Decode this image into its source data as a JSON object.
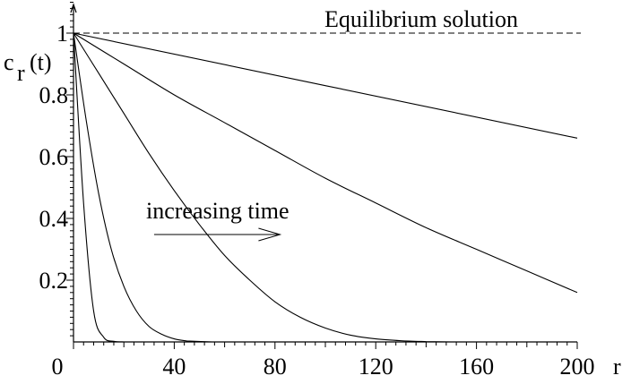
{
  "chart_data": {
    "type": "line",
    "title": "",
    "xlabel": "r",
    "ylabel": "c_r(t)",
    "ylabel_main": "c",
    "ylabel_sub": "r",
    "ylabel_arg": "(t)",
    "xlim": [
      0,
      200
    ],
    "ylim": [
      0,
      1.1
    ],
    "x_ticks": [
      0,
      40,
      80,
      120,
      160,
      200
    ],
    "x_tick_labels": [
      "0",
      "40",
      "80",
      "120",
      "160",
      "200"
    ],
    "y_ticks": [
      0.2,
      0.4,
      0.6,
      0.8,
      1
    ],
    "y_tick_labels": [
      "0.2",
      "0.4",
      "0.6",
      "0.8",
      "1"
    ],
    "grid": false,
    "series": [
      {
        "x": [
          0,
          4,
          8,
          12,
          16,
          20
        ],
        "values": [
          1,
          0.45,
          0.1,
          0.015,
          0.002,
          0
        ]
      },
      {
        "x": [
          0,
          5,
          10,
          15,
          20,
          25,
          30,
          35,
          40,
          45
        ],
        "values": [
          1,
          0.72,
          0.48,
          0.3,
          0.18,
          0.1,
          0.05,
          0.025,
          0.01,
          0.003
        ]
      },
      {
        "x": [
          0,
          10,
          20,
          30,
          40,
          50,
          60,
          70,
          80,
          90,
          100,
          110,
          120,
          130,
          140
        ],
        "values": [
          1,
          0.87,
          0.74,
          0.61,
          0.49,
          0.38,
          0.28,
          0.2,
          0.13,
          0.08,
          0.045,
          0.022,
          0.01,
          0.004,
          0.001
        ]
      },
      {
        "x": [
          0,
          20,
          40,
          60,
          80,
          100,
          120,
          140,
          160,
          180,
          200
        ],
        "values": [
          1,
          0.9,
          0.8,
          0.71,
          0.62,
          0.53,
          0.45,
          0.37,
          0.3,
          0.23,
          0.16
        ]
      },
      {
        "x": [
          0,
          200
        ],
        "values": [
          1,
          0.66
        ]
      }
    ],
    "equilibrium": {
      "y": 1,
      "label": "Equilibrium solution"
    },
    "annotation": {
      "text": "increasing time",
      "arrow_from": [
        32,
        0.35
      ],
      "arrow_to": [
        82,
        0.35
      ]
    }
  }
}
